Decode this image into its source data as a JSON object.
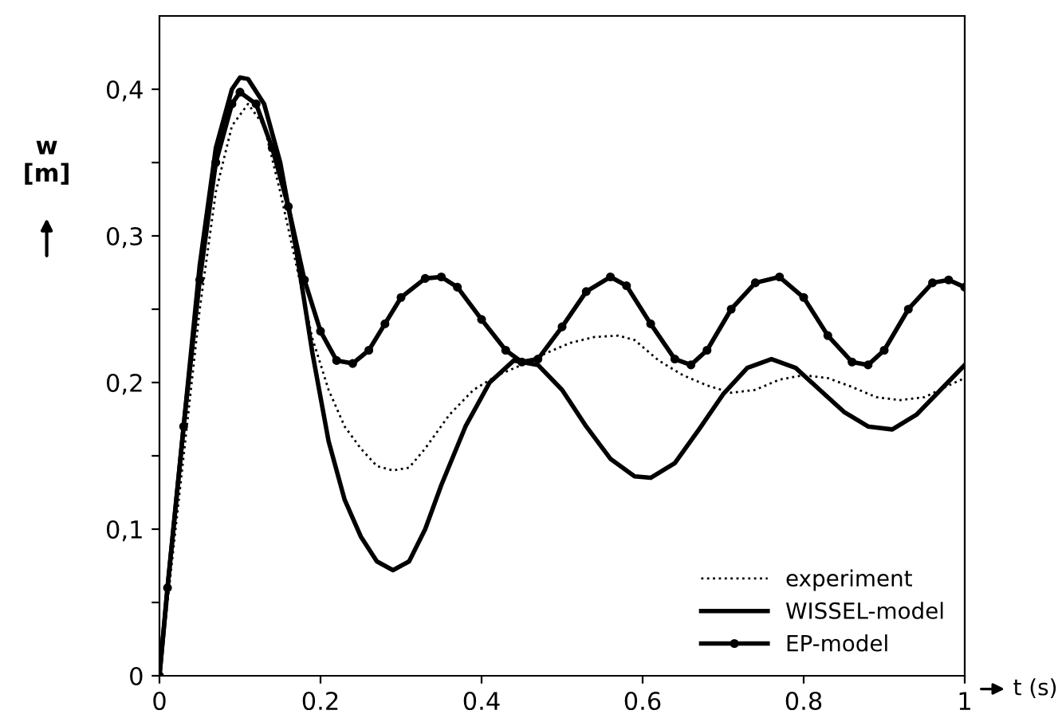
{
  "chart_data": {
    "type": "line",
    "xlabel": "t (s)",
    "ylabel": "w\n[m]",
    "xlim": [
      0,
      1
    ],
    "xticks": [
      0,
      0.2,
      0.4,
      0.6,
      0.8,
      1
    ],
    "ylim": [
      0,
      0.45
    ],
    "yticks": [
      {
        "value": 0,
        "label": "0"
      },
      {
        "value": 0.05,
        "label": null
      },
      {
        "value": 0.1,
        "label": "0,1"
      },
      {
        "value": 0.15,
        "label": null
      },
      {
        "value": 0.2,
        "label": "0,2"
      },
      {
        "value": 0.25,
        "label": null
      },
      {
        "value": 0.3,
        "label": "0,3"
      },
      {
        "value": 0.35,
        "label": null
      },
      {
        "value": 0.4,
        "label": "0,4"
      }
    ],
    "grid": false,
    "legend": "bottom right",
    "series": [
      {
        "name": "experiment",
        "color": "#000000",
        "line_style": "dotted",
        "marker": "none",
        "x": [
          0,
          0.01,
          0.03,
          0.05,
          0.07,
          0.09,
          0.11,
          0.13,
          0.15,
          0.17,
          0.19,
          0.21,
          0.23,
          0.25,
          0.27,
          0.29,
          0.31,
          0.33,
          0.36,
          0.39,
          0.42,
          0.45,
          0.48,
          0.51,
          0.54,
          0.57,
          0.59,
          0.62,
          0.65,
          0.68,
          0.71,
          0.74,
          0.77,
          0.8,
          0.83,
          0.86,
          0.89,
          0.92,
          0.95,
          0.98,
          1.0
        ],
        "values": [
          0,
          0.05,
          0.15,
          0.25,
          0.33,
          0.375,
          0.39,
          0.375,
          0.33,
          0.28,
          0.23,
          0.195,
          0.17,
          0.155,
          0.143,
          0.14,
          0.142,
          0.155,
          0.178,
          0.195,
          0.205,
          0.212,
          0.22,
          0.227,
          0.231,
          0.232,
          0.229,
          0.215,
          0.205,
          0.198,
          0.193,
          0.195,
          0.202,
          0.205,
          0.203,
          0.197,
          0.19,
          0.188,
          0.19,
          0.198,
          0.203
        ]
      },
      {
        "name": "WISSEL-model",
        "color": "#000000",
        "line_style": "solid",
        "marker": "none",
        "x": [
          0,
          0.01,
          0.03,
          0.05,
          0.07,
          0.09,
          0.1,
          0.11,
          0.13,
          0.15,
          0.17,
          0.19,
          0.21,
          0.23,
          0.25,
          0.27,
          0.29,
          0.31,
          0.33,
          0.35,
          0.38,
          0.41,
          0.44,
          0.47,
          0.5,
          0.53,
          0.56,
          0.59,
          0.61,
          0.64,
          0.67,
          0.7,
          0.73,
          0.76,
          0.79,
          0.82,
          0.85,
          0.88,
          0.91,
          0.94,
          0.97,
          1.0
        ],
        "values": [
          0,
          0.06,
          0.17,
          0.28,
          0.36,
          0.4,
          0.408,
          0.407,
          0.39,
          0.35,
          0.29,
          0.22,
          0.16,
          0.12,
          0.095,
          0.078,
          0.072,
          0.078,
          0.1,
          0.13,
          0.17,
          0.2,
          0.215,
          0.212,
          0.195,
          0.17,
          0.148,
          0.136,
          0.135,
          0.145,
          0.168,
          0.192,
          0.21,
          0.216,
          0.21,
          0.195,
          0.18,
          0.17,
          0.168,
          0.178,
          0.195,
          0.212
        ]
      },
      {
        "name": "EP-model",
        "color": "#000000",
        "line_style": "solid",
        "marker": "circle",
        "x": [
          0,
          0.01,
          0.03,
          0.05,
          0.07,
          0.09,
          0.1,
          0.12,
          0.14,
          0.16,
          0.18,
          0.2,
          0.22,
          0.24,
          0.26,
          0.28,
          0.3,
          0.33,
          0.35,
          0.37,
          0.4,
          0.43,
          0.45,
          0.47,
          0.5,
          0.53,
          0.56,
          0.58,
          0.61,
          0.64,
          0.66,
          0.68,
          0.71,
          0.74,
          0.77,
          0.8,
          0.83,
          0.86,
          0.88,
          0.9,
          0.93,
          0.96,
          0.98,
          1.0
        ],
        "values": [
          0,
          0.06,
          0.17,
          0.27,
          0.35,
          0.39,
          0.398,
          0.39,
          0.36,
          0.32,
          0.27,
          0.235,
          0.215,
          0.213,
          0.222,
          0.24,
          0.258,
          0.271,
          0.272,
          0.265,
          0.243,
          0.222,
          0.214,
          0.216,
          0.238,
          0.262,
          0.272,
          0.266,
          0.24,
          0.216,
          0.212,
          0.222,
          0.25,
          0.268,
          0.272,
          0.258,
          0.232,
          0.214,
          0.212,
          0.222,
          0.25,
          0.268,
          0.27,
          0.265
        ]
      }
    ]
  }
}
